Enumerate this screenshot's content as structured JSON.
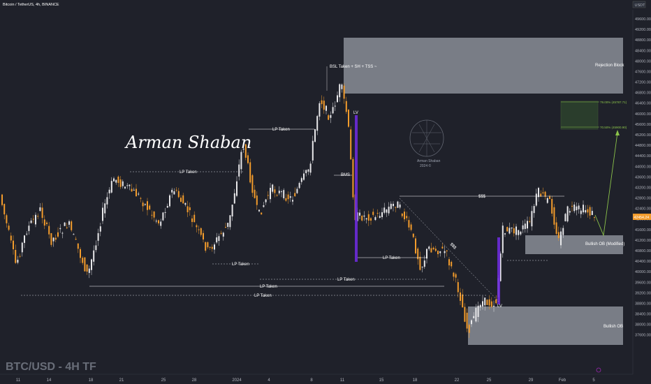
{
  "header": {
    "symbol_line": "Bitcoin / TetherUS, 4h, BINANCE",
    "currency": "USDT"
  },
  "watermark": {
    "text": "BTC/USD - 4H TF"
  },
  "signature": {
    "text": "Arman Shaban",
    "logo_caption_1": "Arman Shaban",
    "logo_caption_2": "2024 ©"
  },
  "colors": {
    "background": "#1f212a",
    "up_candle": "#e8e8ea",
    "down_candle": "#f39c2c",
    "zone_fill": "#787b86",
    "target_fill": "#2f4a2e",
    "target_line": "#8bc34a",
    "bos_bar": "#6c2bd9",
    "price_tag": "#f39c2c"
  },
  "current_price": "42454.24",
  "annotations": {
    "bsl": "BSL Taken + SH + TSS ~",
    "lv_top": "LV",
    "lv_bottom": "LV",
    "bms": "BMS",
    "sss": "$$$",
    "sss_diag": "$$$",
    "lp1": "LP Taken",
    "lp2": "LP Taken",
    "lp3": "LP Taken",
    "lp4": "LP Taken",
    "lp5": "LP Taken",
    "lp6": "LP Taken",
    "lp7": "LP Taken",
    "target_high": "79.00% (45787.71)",
    "target_low": "70.50% (45900.90)"
  },
  "zones": {
    "rejection": "Rejection Block",
    "bullish_ob_modified": "Bullish OB (Modified)",
    "bullish_ob": "Bullish OB"
  },
  "chart_data": {
    "type": "candlestick",
    "y_axis_ticks": [
      "49600.00",
      "49200.00",
      "48800.00",
      "48400.00",
      "48000.00",
      "47600.00",
      "47200.00",
      "46800.00",
      "46400.00",
      "46000.00",
      "45600.00",
      "45200.00",
      "44800.00",
      "44400.00",
      "44000.00",
      "43600.00",
      "43200.00",
      "42800.00",
      "42400.00",
      "42000.00",
      "41600.00",
      "41200.00",
      "40800.00",
      "40400.00",
      "40000.00",
      "39600.00",
      "39200.00",
      "38800.00",
      "38400.00",
      "38000.00",
      "37600.00"
    ],
    "ylim": [
      37500,
      49900
    ],
    "x_axis_ticks": [
      "11",
      "14",
      "18",
      "21",
      "25",
      "28",
      "2024",
      "4",
      "8",
      "11",
      "15",
      "18",
      "22",
      "25",
      "29",
      "Feb",
      "5"
    ],
    "zones": [
      {
        "name": "Rejection Block",
        "y_low": 47100,
        "y_high": 48900
      },
      {
        "name": "Bullish OB (Modified)",
        "y_low": 41650,
        "y_high": 42250
      },
      {
        "name": "Bullish OB",
        "y_low": 38550,
        "y_high": 39850
      }
    ],
    "target_box": {
      "y_low": 45800,
      "y_high": 46700
    }
  }
}
